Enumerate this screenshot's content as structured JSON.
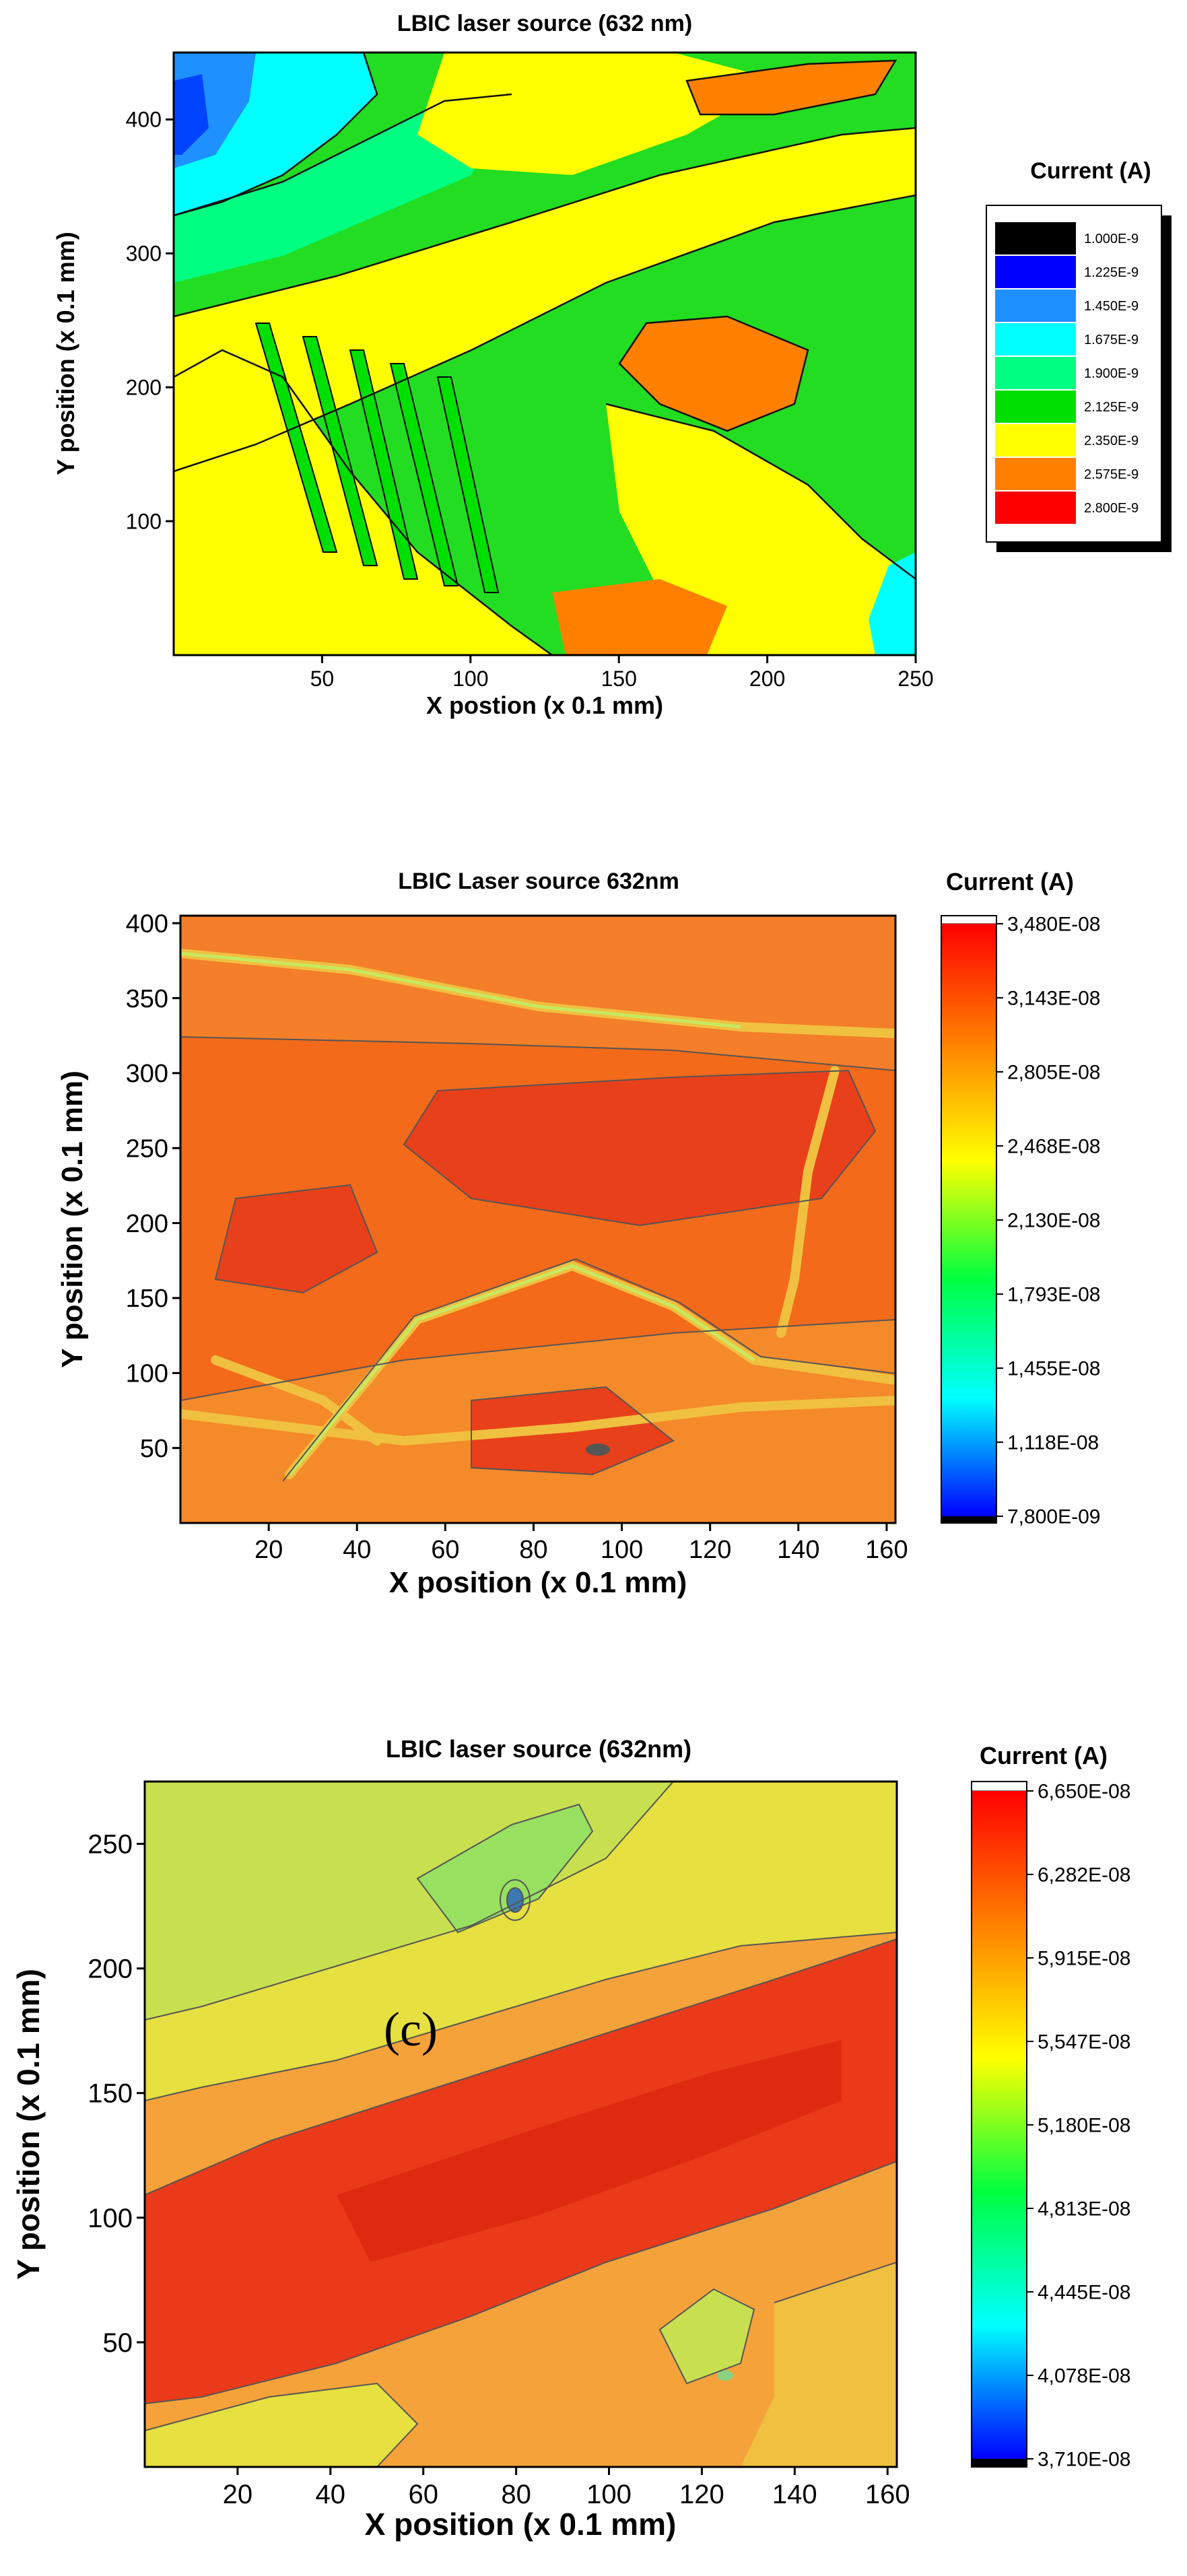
{
  "panels": [
    {
      "title": "LBIC laser source (632 nm)",
      "xlabel": "X postion (x 0.1 mm)",
      "ylabel": "Y position (x 0.1 mm)",
      "colorbar_title": "Current (A)"
    },
    {
      "title": "LBIC Laser source 632nm",
      "xlabel": "X position (x 0.1 mm)",
      "ylabel": "Y position (x 0.1 mm)",
      "colorbar_title": "Current (A)"
    },
    {
      "title": "LBIC laser source (632nm)",
      "xlabel": "X position (x 0.1 mm)",
      "ylabel": "Y position (x 0.1 mm)",
      "colorbar_title": "Current (A)",
      "annotation": "(c)"
    }
  ],
  "chart_data": [
    {
      "type": "heatmap",
      "title": "LBIC laser source (632 nm)",
      "xlabel": "X postion (x 0.1 mm)",
      "ylabel": "Y position (x 0.1 mm)",
      "xlim": [
        0,
        250
      ],
      "ylim": [
        0,
        450
      ],
      "xticks": [
        50,
        100,
        150,
        200,
        250
      ],
      "yticks": [
        100,
        200,
        300,
        400
      ],
      "legend_title": "Current (A)",
      "legend_placement": "right",
      "levels": [
        "1.000E-9",
        "1.225E-9",
        "1.450E-9",
        "1.675E-9",
        "1.900E-9",
        "2.125E-9",
        "2.350E-9",
        "2.575E-9",
        "2.800E-9"
      ],
      "level_colors": [
        "#000000",
        "#0000ff",
        "#1e90ff",
        "#00ffff",
        "#00ff80",
        "#00e000",
        "#ffff00",
        "#ff8000",
        "#ff0000"
      ],
      "contour_lines": true
    },
    {
      "type": "heatmap",
      "title": "LBIC Laser source 632nm",
      "xlabel": "X position (x 0.1 mm)",
      "ylabel": "Y position (x 0.1 mm)",
      "xlim": [
        0,
        162
      ],
      "ylim": [
        0,
        405
      ],
      "xticks": [
        20,
        40,
        60,
        80,
        100,
        120,
        140,
        160
      ],
      "yticks": [
        50,
        100,
        150,
        200,
        250,
        300,
        350,
        400
      ],
      "colorbar_title": "Current (A)",
      "colorbar_ticks": [
        "7,800E-09",
        "1,118E-08",
        "1,455E-08",
        "1,793E-08",
        "2,130E-08",
        "2,468E-08",
        "2,805E-08",
        "3,143E-08",
        "3,480E-08"
      ],
      "colorbar_range": [
        7.8e-09,
        3.48e-08
      ],
      "contour_lines": true
    },
    {
      "type": "heatmap",
      "title": "LBIC laser source (632nm)",
      "xlabel": "X position (x 0.1 mm)",
      "ylabel": "Y position (x 0.1 mm)",
      "xlim": [
        0,
        162
      ],
      "ylim": [
        0,
        275
      ],
      "xticks": [
        20,
        40,
        60,
        80,
        100,
        120,
        140,
        160
      ],
      "yticks": [
        50,
        100,
        150,
        200,
        250
      ],
      "colorbar_title": "Current (A)",
      "colorbar_ticks": [
        "3,710E-08",
        "4,078E-08",
        "4,445E-08",
        "4,813E-08",
        "5,180E-08",
        "5,547E-08",
        "5,915E-08",
        "6,282E-08",
        "6,650E-08"
      ],
      "colorbar_range": [
        3.71e-08,
        6.65e-08
      ],
      "annotation": "(c)",
      "contour_lines": true
    }
  ]
}
